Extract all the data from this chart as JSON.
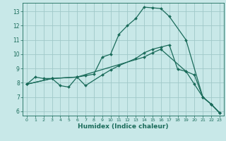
{
  "xlabel": "Humidex (Indice chaleur)",
  "background_color": "#c8e8e8",
  "grid_color": "#a0c8c8",
  "line_color": "#1a6b5a",
  "xlim": [
    -0.5,
    23.5
  ],
  "ylim": [
    5.7,
    13.6
  ],
  "yticks": [
    6,
    7,
    8,
    9,
    10,
    11,
    12,
    13
  ],
  "xticks": [
    0,
    1,
    2,
    3,
    4,
    5,
    6,
    7,
    8,
    9,
    10,
    11,
    12,
    13,
    14,
    15,
    16,
    17,
    18,
    19,
    20,
    21,
    22,
    23
  ],
  "lines": [
    {
      "x": [
        0,
        1,
        2,
        3,
        4,
        5,
        6,
        7,
        8,
        9,
        10,
        11,
        12,
        13,
        14,
        15,
        16,
        17,
        19,
        21,
        22,
        23
      ],
      "y": [
        7.9,
        8.4,
        8.3,
        8.3,
        7.8,
        7.7,
        8.4,
        8.5,
        8.6,
        9.8,
        10.0,
        11.4,
        12.0,
        12.5,
        13.3,
        13.25,
        13.2,
        12.65,
        11.0,
        7.0,
        6.5,
        5.9
      ]
    },
    {
      "x": [
        0,
        3,
        6,
        7,
        9,
        10,
        11,
        13,
        14,
        15,
        16,
        17,
        18,
        19,
        20,
        21,
        22,
        23
      ],
      "y": [
        7.9,
        8.3,
        8.4,
        7.8,
        8.55,
        8.9,
        9.2,
        9.7,
        10.1,
        10.35,
        10.5,
        10.65,
        8.95,
        8.8,
        8.55,
        7.0,
        6.5,
        5.9
      ]
    },
    {
      "x": [
        0,
        3,
        6,
        14,
        15,
        16,
        19,
        20,
        21,
        22,
        23
      ],
      "y": [
        7.9,
        8.3,
        8.4,
        9.8,
        10.1,
        10.35,
        8.8,
        7.9,
        7.0,
        6.5,
        5.9
      ]
    }
  ]
}
